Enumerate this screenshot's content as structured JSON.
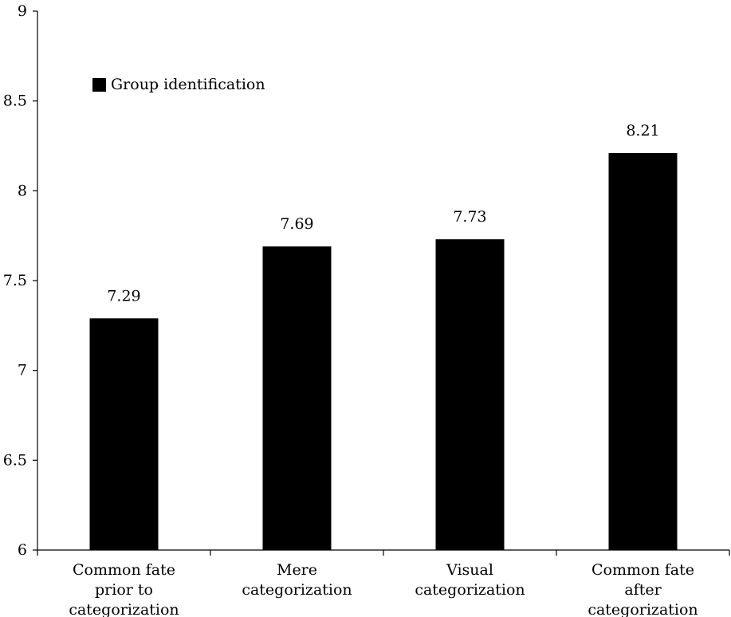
{
  "chart_data": {
    "type": "bar",
    "categories": [
      [
        "Common fate",
        "prior to",
        "categorization"
      ],
      [
        "Mere",
        "categorization"
      ],
      [
        "Visual",
        "categorization"
      ],
      [
        "Common fate",
        "after",
        "categorization"
      ]
    ],
    "series": [
      {
        "name": "Group identification",
        "values": [
          7.29,
          7.69,
          7.73,
          8.21
        ],
        "color": "#000000"
      }
    ],
    "data_labels": [
      "7.29",
      "7.69",
      "7.73",
      "8.21"
    ],
    "y_ticks": [
      "6",
      "6.5",
      "7",
      "7.5",
      "8",
      "8.5",
      "9"
    ],
    "ylim": [
      6,
      9
    ],
    "grid": false,
    "legend_position": "top-left"
  }
}
